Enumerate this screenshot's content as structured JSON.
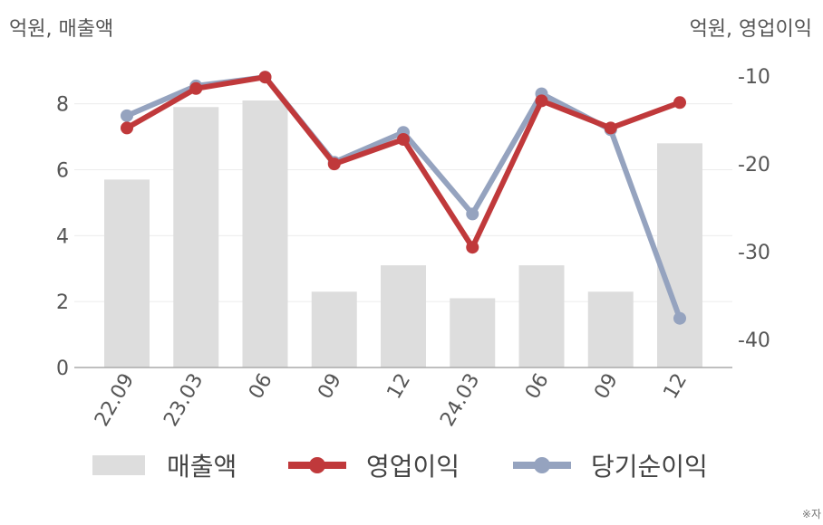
{
  "chart_data": {
    "type": "bar+line",
    "categories": [
      "22.09",
      "23.03",
      "06",
      "09",
      "12",
      "24.03",
      "06",
      "09",
      "12"
    ],
    "left_axis": {
      "label": "억원, 매출액",
      "ylim": [
        0,
        9.5
      ],
      "ticks": [
        0,
        2,
        4,
        6,
        8
      ]
    },
    "right_axis": {
      "label": "억원, 영업이익",
      "ylim": [
        -43.2,
        -7.5
      ],
      "ticks": [
        -10,
        -20,
        -30,
        -40
      ]
    },
    "series": [
      {
        "name": "매출액",
        "type": "bar",
        "axis": "left",
        "color": "#dddddd",
        "values": [
          5.7,
          7.9,
          8.1,
          2.3,
          3.1,
          2.1,
          3.1,
          2.3,
          6.8
        ]
      },
      {
        "name": "당기순이익",
        "type": "line",
        "axis": "right",
        "color": "#95a3bf",
        "values": [
          -14.5,
          -11.1,
          -10.1,
          -19.8,
          -16.4,
          -25.7,
          -12.0,
          -16.1,
          -37.6
        ]
      },
      {
        "name": "영업이익",
        "type": "line",
        "axis": "right",
        "color": "#c0393b",
        "values": [
          -15.9,
          -11.4,
          -10.1,
          -20.0,
          -17.2,
          -29.5,
          -12.8,
          -15.9,
          -13.0
        ]
      }
    ],
    "grid": true,
    "legend_position": "bottom"
  },
  "legend": [
    "매출액",
    "영업이익",
    "당기순이익"
  ],
  "note": "※자"
}
